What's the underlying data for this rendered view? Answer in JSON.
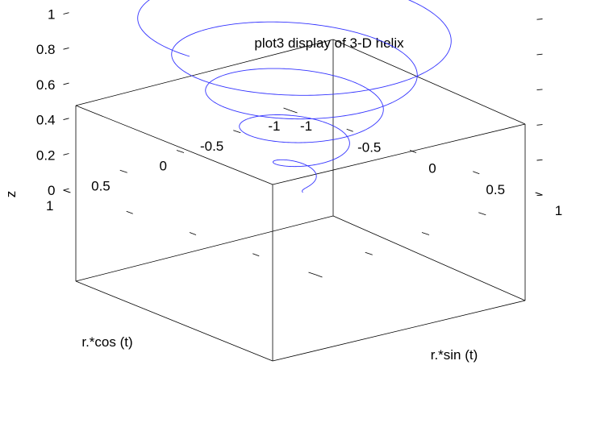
{
  "chart_data": {
    "type": "line3d",
    "title": "plot3 display of 3-D helix",
    "xlabel": "r.*cos (t)",
    "ylabel": "r.*sin (t)",
    "zlabel": "z",
    "xlim": [
      -1,
      1
    ],
    "ylim": [
      -1,
      1
    ],
    "zlim": [
      0,
      1
    ],
    "xticks": [
      "-1",
      "-0.5",
      "0",
      "0.5",
      "1"
    ],
    "yticks": [
      "-1",
      "-0.5",
      "0",
      "0.5",
      "1"
    ],
    "zticks": [
      "0",
      "0.2",
      "0.4",
      "0.6",
      "0.8",
      "1"
    ],
    "series": [
      {
        "equation": "t = 0..10π; r = t/(10π); x = r*cos(t); y = r*sin(t); z = t/(10π)",
        "t_range": [
          0,
          31.4159
        ],
        "color": "#3333ff"
      }
    ],
    "grid": false,
    "box": true
  }
}
